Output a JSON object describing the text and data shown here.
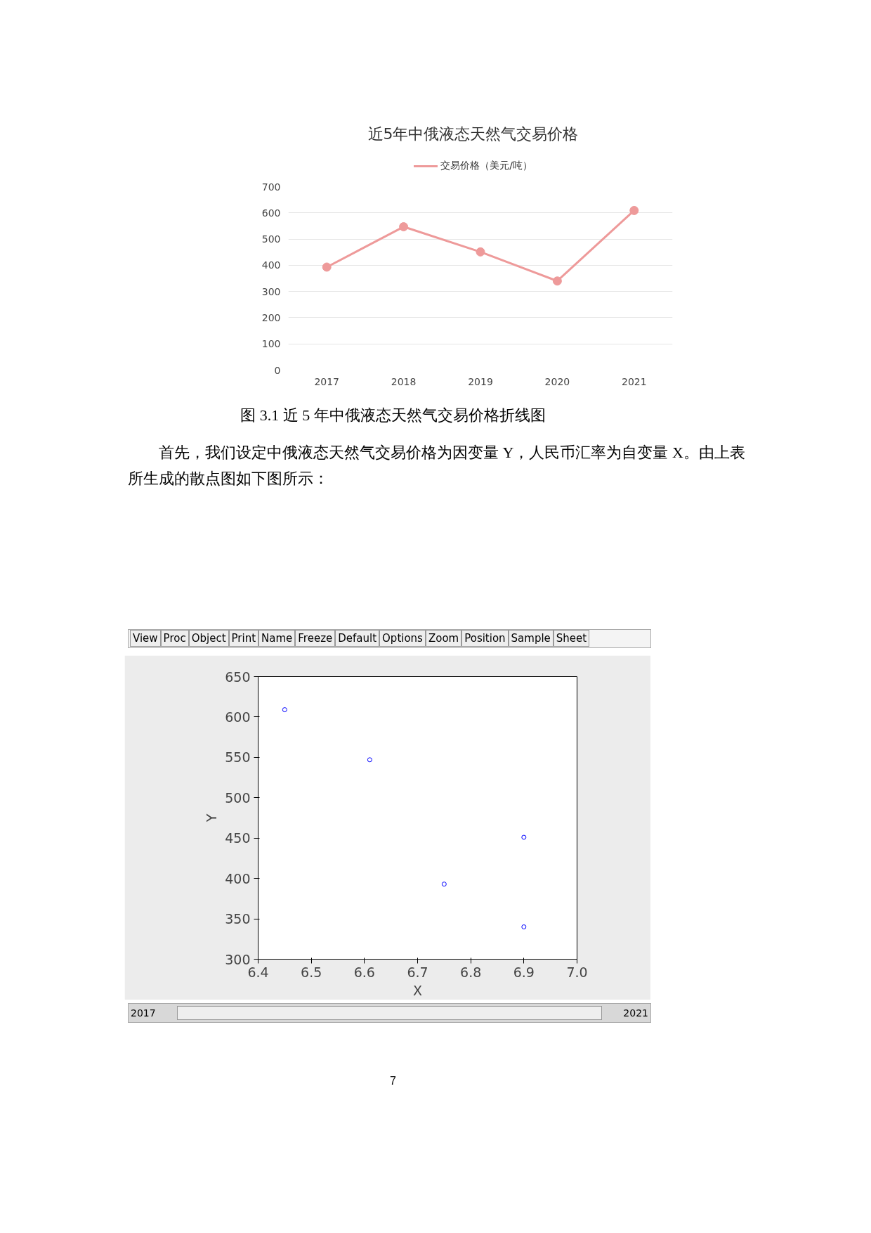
{
  "chart_data": [
    {
      "type": "line",
      "title": "近5年中俄液态天然气交易价格",
      "categories": [
        "2017",
        "2018",
        "2019",
        "2020",
        "2021"
      ],
      "series": [
        {
          "name": "交易价格（美元/吨）",
          "color": "#ee9a9a",
          "values": [
            393,
            547,
            451,
            340,
            609
          ]
        }
      ],
      "ylim": [
        0,
        700
      ],
      "yticks": [
        0,
        100,
        200,
        300,
        400,
        500,
        600,
        700
      ],
      "grid": "y",
      "legend": "top",
      "marker": "circle",
      "annotations": [
        "图 3.1  近 5 年中俄液态天然气交易价格折线图",
        "首先，我们设定中俄液态天然气交易价格为因变量 Y，人民币汇率为自变量 X。由上表所生成的散点图如下图所示："
      ]
    },
    {
      "type": "scatter",
      "x": [
        6.75,
        6.61,
        6.9,
        6.9,
        6.45
      ],
      "values": [
        393,
        547,
        451,
        340,
        609
      ],
      "color": "#0000ff",
      "marker": "circle",
      "xlabel": "X",
      "ylabel": "Y",
      "xlim": [
        6.4,
        7.0
      ],
      "ylim": [
        300,
        650
      ],
      "xticks": [
        6.4,
        6.5,
        6.6,
        6.7,
        6.8,
        6.9,
        {
          "value": 7.0,
          "label": "7.0"
        }
      ],
      "yticks": [
        300,
        350,
        400,
        450,
        500,
        550,
        600,
        650
      ],
      "annotations": [
        "View",
        "Proc",
        "Object",
        "Print",
        "Name",
        "Freeze",
        "Default",
        "Options",
        "Zoom",
        "Position",
        "Sample",
        "Sheet",
        "2017",
        "2021",
        "7"
      ]
    }
  ]
}
